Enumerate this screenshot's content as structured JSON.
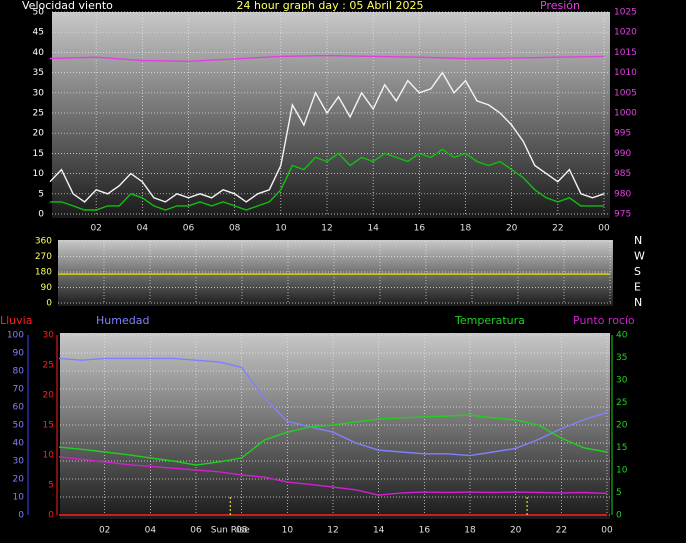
{
  "chart_data": [
    {
      "type": "line",
      "title": "24 hour graph day : 05 Abril 2025",
      "y_label": "Velocidad viento",
      "y2_label": "Presión",
      "xlim": [
        0,
        24
      ],
      "xticks": [
        {
          "value": 2,
          "label": "02"
        },
        {
          "value": 4,
          "label": "04"
        },
        {
          "value": 6,
          "label": "06"
        },
        {
          "value": 8,
          "label": "08"
        },
        10,
        12,
        14,
        16,
        18,
        20,
        22,
        {
          "value": 24,
          "label": "00"
        }
      ],
      "ylim": [
        0,
        50
      ],
      "yticks": [
        0,
        5,
        10,
        15,
        20,
        25,
        30,
        35,
        40,
        45,
        50
      ],
      "y2lim": [
        975,
        1025
      ],
      "y2ticks": [
        975,
        980,
        985,
        990,
        995,
        1000,
        1005,
        1010,
        1015,
        1020,
        1025
      ],
      "grid": true,
      "series": [
        {
          "color": "#f4f4f4",
          "x": [
            0,
            0.5,
            1,
            1.5,
            2,
            2.5,
            3,
            3.5,
            4,
            4.5,
            5,
            5.5,
            6,
            6.5,
            7,
            7.5,
            8,
            8.5,
            9,
            9.5,
            10,
            10.5,
            11,
            11.5,
            12,
            12.5,
            13,
            13.5,
            14,
            14.5,
            15,
            15.5,
            16,
            16.5,
            17,
            17.5,
            18,
            18.5,
            19,
            19.5,
            20,
            20.5,
            21,
            21.5,
            22,
            22.5,
            23,
            23.5,
            24
          ],
          "values": [
            8,
            11,
            5,
            3,
            6,
            5,
            7,
            10,
            8,
            4,
            3,
            5,
            4,
            5,
            4,
            6,
            5,
            3,
            5,
            6,
            12,
            27,
            22,
            30,
            25,
            29,
            24,
            30,
            26,
            32,
            28,
            33,
            30,
            31,
            35,
            30,
            33,
            28,
            27,
            25,
            22,
            18,
            12,
            10,
            8,
            11,
            5,
            4,
            5
          ]
        },
        {
          "color": "#10c010",
          "x": [
            0,
            0.5,
            1,
            1.5,
            2,
            2.5,
            3,
            3.5,
            4,
            4.5,
            5,
            5.5,
            6,
            6.5,
            7,
            7.5,
            8,
            8.5,
            9,
            9.5,
            10,
            10.5,
            11,
            11.5,
            12,
            12.5,
            13,
            13.5,
            14,
            14.5,
            15,
            15.5,
            16,
            16.5,
            17,
            17.5,
            18,
            18.5,
            19,
            19.5,
            20,
            20.5,
            21,
            21.5,
            22,
            22.5,
            23,
            23.5,
            24
          ],
          "values": [
            3,
            3,
            2,
            1,
            1,
            2,
            2,
            5,
            4,
            2,
            1,
            2,
            2,
            3,
            2,
            3,
            2,
            1,
            2,
            3,
            6,
            12,
            11,
            14,
            13,
            15,
            12,
            14,
            13,
            15,
            14,
            13,
            15,
            14,
            16,
            14,
            15,
            13,
            12,
            13,
            11,
            9,
            6,
            4,
            3,
            4,
            2,
            2,
            2
          ]
        },
        {
          "color": "#e040e0",
          "axis": "y2",
          "x": [
            0,
            2,
            4,
            6,
            8,
            10,
            12,
            14,
            16,
            18,
            20,
            22,
            24
          ],
          "values": [
            1013.5,
            1013.8,
            1013.0,
            1012.8,
            1013.4,
            1014.0,
            1014.2,
            1014.0,
            1013.8,
            1013.5,
            1013.6,
            1013.8,
            1014.0
          ]
        }
      ]
    },
    {
      "type": "line",
      "xlim": [
        0,
        24
      ],
      "xticks": [
        2,
        4,
        6,
        8,
        10,
        12,
        14,
        16,
        18,
        20,
        22,
        24
      ],
      "ylim": [
        0,
        360
      ],
      "yticks": [
        0,
        90,
        180,
        270,
        360
      ],
      "y2ticks": [
        {
          "value": 360,
          "label": "N"
        },
        {
          "value": 270,
          "label": "W"
        },
        {
          "value": 180,
          "label": "S"
        },
        {
          "value": 90,
          "label": "E"
        },
        {
          "value": 0,
          "label": "N"
        }
      ],
      "grid": true,
      "series": [
        {
          "color": "#e0e000",
          "x": [
            0,
            24
          ],
          "values": [
            168,
            168
          ]
        }
      ]
    },
    {
      "type": "line",
      "xlim": [
        0,
        24
      ],
      "xticks": [
        {
          "value": 2,
          "label": "02"
        },
        {
          "value": 4,
          "label": "04"
        },
        {
          "value": 6,
          "label": "06"
        },
        {
          "value": 8,
          "label": "08"
        },
        10,
        12,
        14,
        16,
        18,
        20,
        22,
        {
          "value": 24,
          "label": "00"
        }
      ],
      "ylim": [
        0,
        100
      ],
      "yticks": [
        0,
        10,
        20,
        30,
        40,
        50,
        60,
        70,
        80,
        90,
        100
      ],
      "y3lim": [
        0,
        30
      ],
      "y3ticks": [
        0,
        5,
        10,
        15,
        20,
        25,
        30
      ],
      "y2lim": [
        0,
        40
      ],
      "y2ticks": [
        0,
        5,
        10,
        15,
        20,
        25,
        30,
        35,
        40
      ],
      "grid": true,
      "annotation": "Sun Rise",
      "sunrise": 7.5,
      "sunset": 20.5,
      "series": [
        {
          "name": "Lluvia",
          "color": "#ff2020",
          "axis": "y3",
          "x": [
            0,
            24
          ],
          "values": [
            0,
            0
          ]
        },
        {
          "name": "Humedad",
          "color": "#8080ff",
          "x": [
            0,
            1,
            2,
            3,
            4,
            5,
            6,
            7,
            8,
            9,
            10,
            11,
            12,
            13,
            14,
            15,
            16,
            17,
            18,
            19,
            20,
            21,
            22,
            23,
            24
          ],
          "values": [
            87,
            86,
            87,
            87,
            87,
            87,
            86,
            85,
            82,
            65,
            52,
            49,
            46,
            40,
            36,
            35,
            34,
            34,
            33,
            35,
            37,
            42,
            48,
            53,
            57
          ]
        },
        {
          "name": "Temperatura",
          "color": "#20d020",
          "axis": "y2",
          "x": [
            0,
            1,
            2,
            3,
            4,
            5,
            6,
            7,
            8,
            9,
            10,
            11,
            12,
            13,
            14,
            15,
            16,
            17,
            18,
            19,
            20,
            21,
            22,
            23,
            24
          ],
          "values": [
            15.1,
            14.6,
            14.0,
            13.4,
            12.7,
            12.0,
            11.1,
            11.8,
            12.7,
            16.7,
            18.4,
            19.6,
            20.0,
            20.7,
            21.3,
            21.6,
            21.8,
            22.0,
            22.2,
            21.6,
            21.1,
            20.0,
            17.1,
            14.9,
            14.0
          ]
        },
        {
          "name": "Punto rocío",
          "color": "#d020d0",
          "axis": "y2",
          "x": [
            0,
            1,
            2,
            3,
            4,
            5,
            6,
            7,
            8,
            9,
            10,
            11,
            12,
            13,
            14,
            15,
            16,
            17,
            18,
            19,
            20,
            21,
            22,
            23,
            24
          ],
          "values": [
            12.9,
            12.4,
            11.8,
            11.2,
            10.8,
            10.4,
            10.0,
            9.6,
            8.9,
            8.4,
            7.3,
            6.8,
            6.2,
            5.6,
            4.4,
            4.9,
            5.1,
            5.0,
            5.1,
            5.0,
            5.1,
            5.0,
            4.9,
            5.0,
            4.8
          ]
        }
      ]
    }
  ]
}
